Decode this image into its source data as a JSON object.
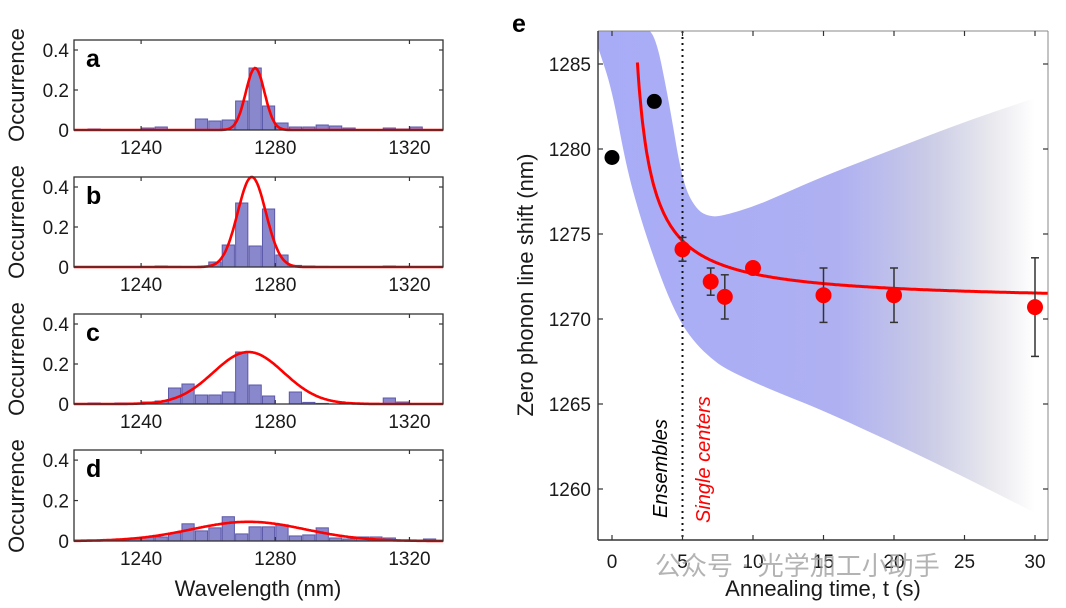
{
  "chart_data": [
    {
      "panel": "a",
      "type": "bar",
      "xlabel": "",
      "ylabel": "Occurrence",
      "xlim": [
        1220,
        1330
      ],
      "ylim": [
        0,
        0.45
      ],
      "xticks": [
        1240,
        1280,
        1320
      ],
      "yticks": [
        0,
        0.2,
        0.4
      ],
      "ytick_labels": [
        "0",
        "0.2",
        "0.4"
      ],
      "bin_width": 4,
      "bin_centers": [
        1222,
        1226,
        1230,
        1234,
        1238,
        1242,
        1246,
        1250,
        1254,
        1258,
        1262,
        1266,
        1270,
        1274,
        1278,
        1282,
        1286,
        1290,
        1294,
        1298,
        1302,
        1306,
        1310,
        1314,
        1318,
        1322,
        1326
      ],
      "values": [
        0,
        0.005,
        0,
        0,
        0,
        0.01,
        0.015,
        0,
        0,
        0.055,
        0.045,
        0.05,
        0.145,
        0.31,
        0.12,
        0.035,
        0.015,
        0.015,
        0.025,
        0.02,
        0.01,
        0,
        0,
        0.01,
        0.005,
        0.015,
        0
      ],
      "fit": {
        "type": "gaussian",
        "amplitude": 0.31,
        "center": 1274,
        "sigma": 2.8
      }
    },
    {
      "panel": "b",
      "type": "bar",
      "xlabel": "",
      "ylabel": "Occurrence",
      "xlim": [
        1220,
        1330
      ],
      "ylim": [
        0,
        0.45
      ],
      "xticks": [
        1240,
        1280,
        1320
      ],
      "yticks": [
        0,
        0.2,
        0.4
      ],
      "ytick_labels": [
        "0",
        "0.2",
        "0.4"
      ],
      "bin_width": 4,
      "bin_centers": [
        1222,
        1226,
        1230,
        1234,
        1238,
        1242,
        1246,
        1250,
        1254,
        1258,
        1262,
        1266,
        1270,
        1274,
        1278,
        1282,
        1286,
        1290,
        1294,
        1298,
        1302,
        1306,
        1310,
        1314,
        1318,
        1322,
        1326
      ],
      "values": [
        0,
        0,
        0,
        0,
        0,
        0,
        0.005,
        0.003,
        0,
        0,
        0.025,
        0.11,
        0.32,
        0.105,
        0.29,
        0.06,
        0.008,
        0.005,
        0.003,
        0,
        0,
        0,
        0,
        0.005,
        0.003,
        0,
        0
      ],
      "fit": {
        "type": "gaussian",
        "amplitude": 0.45,
        "center": 1273,
        "sigma": 4.2
      }
    },
    {
      "panel": "c",
      "type": "bar",
      "xlabel": "",
      "ylabel": "Occurrence",
      "xlim": [
        1220,
        1330
      ],
      "ylim": [
        0,
        0.45
      ],
      "xticks": [
        1240,
        1280,
        1320
      ],
      "yticks": [
        0,
        0.2,
        0.4
      ],
      "ytick_labels": [
        "0",
        "0.2",
        "0.4"
      ],
      "bin_width": 4,
      "bin_centers": [
        1222,
        1226,
        1230,
        1234,
        1238,
        1242,
        1246,
        1250,
        1254,
        1258,
        1262,
        1266,
        1270,
        1274,
        1278,
        1282,
        1286,
        1290,
        1294,
        1298,
        1302,
        1306,
        1310,
        1314,
        1318,
        1322,
        1326
      ],
      "values": [
        0,
        0.005,
        0,
        0.005,
        0,
        0.01,
        0.015,
        0.08,
        0.1,
        0.045,
        0.045,
        0.06,
        0.26,
        0.095,
        0.04,
        0,
        0.06,
        0.008,
        0.003,
        0,
        0,
        0,
        0,
        0.03,
        0.01,
        0,
        0
      ],
      "fit": {
        "type": "gaussian",
        "amplitude": 0.26,
        "center": 1272,
        "sigma": 10.5
      }
    },
    {
      "panel": "d",
      "type": "bar",
      "xlabel": "Wavelength (nm)",
      "ylabel": "Occurrence",
      "xlim": [
        1220,
        1330
      ],
      "ylim": [
        0,
        0.45
      ],
      "xticks": [
        1240,
        1280,
        1320
      ],
      "yticks": [
        0,
        0.2,
        0.4
      ],
      "ytick_labels": [
        "0",
        "0.2",
        "0.4"
      ],
      "bin_width": 4,
      "bin_centers": [
        1222,
        1226,
        1230,
        1234,
        1238,
        1242,
        1246,
        1250,
        1254,
        1258,
        1262,
        1266,
        1270,
        1274,
        1278,
        1282,
        1286,
        1290,
        1294,
        1298,
        1302,
        1306,
        1310,
        1314,
        1318,
        1322,
        1326
      ],
      "values": [
        0,
        0.005,
        0,
        0.005,
        0.01,
        0.02,
        0.02,
        0.04,
        0.085,
        0.05,
        0.065,
        0.12,
        0.035,
        0.07,
        0.07,
        0.08,
        0.025,
        0.03,
        0.065,
        0.015,
        0.01,
        0.02,
        0.02,
        0.015,
        0,
        0,
        0.01
      ],
      "fit": {
        "type": "gaussian",
        "amplitude": 0.095,
        "center": 1272,
        "sigma": 17
      }
    },
    {
      "panel": "e",
      "type": "scatter",
      "xlabel": "Annealing time, t (s)",
      "ylabel": "Zero phonon line shift (nm)",
      "xlim": [
        -1,
        31
      ],
      "ylim": [
        1257,
        1287
      ],
      "xticks": [
        0,
        5,
        10,
        15,
        20,
        25,
        30
      ],
      "yticks": [
        1260,
        1265,
        1270,
        1275,
        1280,
        1285
      ],
      "ensembles": {
        "x": [
          0,
          3
        ],
        "y": [
          1279.5,
          1282.8
        ]
      },
      "single_centers": {
        "x": [
          5,
          7,
          8,
          10,
          15,
          20,
          30
        ],
        "y": [
          1274.1,
          1272.2,
          1271.3,
          1273.0,
          1271.4,
          1271.4,
          1270.7
        ],
        "yerr": [
          0.7,
          0.8,
          1.3,
          null,
          1.6,
          1.6,
          2.9
        ]
      },
      "fit_curve": {
        "type": "hyperbolic_decay",
        "asymptote": 1271.0,
        "coefficient": 15.5,
        "offset_t": 0.7
      },
      "confidence_band": {
        "upper": {
          "t": [
            -1,
            0,
            1,
            2,
            3,
            4,
            5,
            6,
            7,
            8,
            10,
            12,
            15,
            20,
            25,
            30
          ],
          "y": [
            1287,
            1287,
            1287,
            1287,
            1287,
            1283,
            1278.0,
            1276.4,
            1276.0,
            1276.1,
            1276.6,
            1277.3,
            1278.4,
            1280.0,
            1281.6,
            1283.0
          ]
        },
        "lower": {
          "t": [
            -1,
            0,
            1,
            2,
            3,
            4,
            5,
            6,
            7,
            8,
            10,
            12,
            15,
            20,
            25,
            30
          ],
          "y": [
            1286,
            1283.5,
            1279.0,
            1276.0,
            1273.5,
            1271.3,
            1269.6,
            1268.5,
            1267.7,
            1267.1,
            1266.3,
            1265.6,
            1264.6,
            1262.7,
            1260.7,
            1258.6
          ]
        }
      },
      "divider_t": 5,
      "annotations": [
        {
          "text": "Ensembles",
          "color": "#000000"
        },
        {
          "text": "Single centers",
          "color": "#ff0000"
        }
      ]
    }
  ],
  "labels": {
    "panel_letters": [
      "a",
      "b",
      "c",
      "d",
      "e"
    ],
    "occurrence": "Occurrence",
    "wavelength": "Wavelength (nm)",
    "annealing": "Annealing time, t (s)",
    "zpl": "Zero phonon line shift (nm)",
    "ensembles": "Ensembles",
    "single_centers": "Single centers",
    "watermark": "公众号 · 光学加工小助手"
  },
  "colors": {
    "bar_fill": "#8a88cc",
    "bar_edge": "#5b58a8",
    "fit_line": "#ff0000",
    "band": "#a8acf6",
    "band_fade": "#f4f4f6",
    "ensemble_marker": "#000000",
    "single_marker": "#ff0000",
    "errorbar": "#333333",
    "axis": "#333333"
  }
}
